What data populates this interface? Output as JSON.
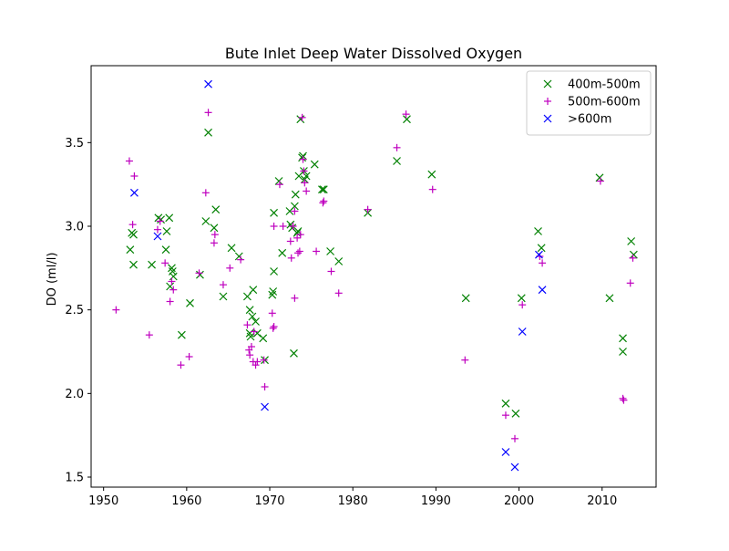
{
  "chart_data": {
    "type": "scatter",
    "title": "Bute Inlet Deep Water Dissolved Oxygen",
    "xlabel": "",
    "ylabel": "DO (ml/l)",
    "xlim": [
      1948.5,
      2016.5
    ],
    "ylim": [
      1.44,
      3.96
    ],
    "xticks": [
      1950,
      1960,
      1970,
      1980,
      1990,
      2000,
      2010
    ],
    "yticks": [
      1.5,
      2.0,
      2.5,
      3.0,
      3.5
    ],
    "ytick_labels": [
      "1.5",
      "2.0",
      "2.5",
      "3.0",
      "3.5"
    ],
    "grid": false,
    "legend_position": "top-right",
    "series": [
      {
        "name": "400m-500m",
        "marker": "x",
        "color": "#008000",
        "points": [
          [
            1953.2,
            2.86
          ],
          [
            1953.4,
            2.96
          ],
          [
            1953.6,
            2.95
          ],
          [
            1953.6,
            2.77
          ],
          [
            1955.8,
            2.77
          ],
          [
            1956.6,
            3.05
          ],
          [
            1956.9,
            3.04
          ],
          [
            1957.5,
            2.86
          ],
          [
            1957.6,
            2.97
          ],
          [
            1957.9,
            3.05
          ],
          [
            1958.0,
            2.64
          ],
          [
            1958.2,
            2.75
          ],
          [
            1958.3,
            2.73
          ],
          [
            1958.4,
            2.7
          ],
          [
            1959.4,
            2.35
          ],
          [
            1960.4,
            2.54
          ],
          [
            1961.6,
            2.71
          ],
          [
            1962.3,
            3.03
          ],
          [
            1962.6,
            3.56
          ],
          [
            1963.3,
            2.99
          ],
          [
            1963.5,
            3.1
          ],
          [
            1964.4,
            2.58
          ],
          [
            1965.4,
            2.87
          ],
          [
            1966.3,
            2.82
          ],
          [
            1967.3,
            2.58
          ],
          [
            1967.6,
            2.5
          ],
          [
            1967.6,
            2.36
          ],
          [
            1967.7,
            2.34
          ],
          [
            1967.9,
            2.46
          ],
          [
            1968.0,
            2.62
          ],
          [
            1968.3,
            2.43
          ],
          [
            1968.5,
            2.36
          ],
          [
            1969.2,
            2.33
          ],
          [
            1969.4,
            2.2
          ],
          [
            1970.3,
            2.59
          ],
          [
            1970.4,
            2.61
          ],
          [
            1970.5,
            2.73
          ],
          [
            1970.5,
            3.08
          ],
          [
            1971.1,
            3.27
          ],
          [
            1971.5,
            2.84
          ],
          [
            1972.4,
            3.09
          ],
          [
            1972.5,
            3.01
          ],
          [
            1972.7,
            2.99
          ],
          [
            1972.9,
            2.24
          ],
          [
            1973.0,
            3.12
          ],
          [
            1973.1,
            3.19
          ],
          [
            1973.3,
            2.96
          ],
          [
            1973.4,
            2.97
          ],
          [
            1973.5,
            3.3
          ],
          [
            1973.7,
            3.64
          ],
          [
            1973.9,
            3.41
          ],
          [
            1974.0,
            3.42
          ],
          [
            1974.1,
            3.33
          ],
          [
            1974.2,
            3.28
          ],
          [
            1974.4,
            3.3
          ],
          [
            1975.4,
            3.37
          ],
          [
            1976.3,
            3.22
          ],
          [
            1976.5,
            3.22
          ],
          [
            1977.3,
            2.85
          ],
          [
            1978.3,
            2.79
          ],
          [
            1981.8,
            3.08
          ],
          [
            1985.3,
            3.39
          ],
          [
            1986.5,
            3.64
          ],
          [
            1989.5,
            3.31
          ],
          [
            1993.6,
            2.57
          ],
          [
            1998.4,
            1.94
          ],
          [
            1999.6,
            1.88
          ],
          [
            2000.3,
            2.57
          ],
          [
            2002.3,
            2.97
          ],
          [
            2002.7,
            2.87
          ],
          [
            2009.7,
            3.29
          ],
          [
            2010.9,
            2.57
          ],
          [
            2012.5,
            2.33
          ],
          [
            2012.5,
            2.25
          ],
          [
            2013.5,
            2.91
          ],
          [
            2013.8,
            2.83
          ]
        ]
      },
      {
        "name": "500m-600m",
        "marker": "+",
        "color": "#bf00bf",
        "points": [
          [
            1951.5,
            2.5
          ],
          [
            1953.1,
            3.39
          ],
          [
            1953.5,
            3.01
          ],
          [
            1953.7,
            3.3
          ],
          [
            1955.5,
            2.35
          ],
          [
            1956.5,
            2.98
          ],
          [
            1956.8,
            3.03
          ],
          [
            1957.4,
            2.78
          ],
          [
            1958.0,
            2.55
          ],
          [
            1958.2,
            2.67
          ],
          [
            1958.4,
            2.62
          ],
          [
            1959.3,
            2.17
          ],
          [
            1960.3,
            2.22
          ],
          [
            1961.5,
            2.72
          ],
          [
            1962.3,
            3.2
          ],
          [
            1962.6,
            3.68
          ],
          [
            1963.3,
            2.9
          ],
          [
            1963.4,
            2.95
          ],
          [
            1964.4,
            2.65
          ],
          [
            1965.2,
            2.75
          ],
          [
            1966.5,
            2.8
          ],
          [
            1967.3,
            2.41
          ],
          [
            1967.5,
            2.26
          ],
          [
            1967.6,
            2.23
          ],
          [
            1967.8,
            2.28
          ],
          [
            1968.0,
            2.19
          ],
          [
            1968.1,
            2.37
          ],
          [
            1968.3,
            2.17
          ],
          [
            1968.5,
            2.19
          ],
          [
            1969.3,
            2.2
          ],
          [
            1969.4,
            2.04
          ],
          [
            1970.3,
            2.48
          ],
          [
            1970.4,
            2.39
          ],
          [
            1970.5,
            2.4
          ],
          [
            1970.5,
            3.0
          ],
          [
            1971.2,
            3.25
          ],
          [
            1971.6,
            3.0
          ],
          [
            1972.5,
            2.91
          ],
          [
            1972.6,
            2.81
          ],
          [
            1972.8,
            3.0
          ],
          [
            1973.0,
            2.57
          ],
          [
            1973.0,
            3.09
          ],
          [
            1973.3,
            2.93
          ],
          [
            1973.4,
            2.84
          ],
          [
            1973.6,
            2.85
          ],
          [
            1973.7,
            2.95
          ],
          [
            1973.9,
            3.65
          ],
          [
            1974.0,
            3.4
          ],
          [
            1974.1,
            3.33
          ],
          [
            1974.2,
            3.26
          ],
          [
            1974.4,
            3.21
          ],
          [
            1975.6,
            2.85
          ],
          [
            1976.4,
            3.14
          ],
          [
            1976.5,
            3.15
          ],
          [
            1977.4,
            2.73
          ],
          [
            1978.3,
            2.6
          ],
          [
            1981.8,
            3.1
          ],
          [
            1985.3,
            3.47
          ],
          [
            1986.4,
            3.67
          ],
          [
            1989.6,
            3.22
          ],
          [
            1993.5,
            2.2
          ],
          [
            1998.4,
            1.87
          ],
          [
            1999.5,
            1.73
          ],
          [
            2000.4,
            2.53
          ],
          [
            2002.5,
            2.82
          ],
          [
            2002.8,
            2.78
          ],
          [
            2009.8,
            3.27
          ],
          [
            2012.5,
            1.97
          ],
          [
            2012.6,
            1.96
          ],
          [
            2013.4,
            2.66
          ],
          [
            2013.7,
            2.81
          ]
        ]
      },
      {
        "name": ">600m",
        "marker": "x",
        "color": "#0000ff",
        "points": [
          [
            1953.7,
            3.2
          ],
          [
            1956.5,
            2.94
          ],
          [
            1962.6,
            3.85
          ],
          [
            1969.4,
            1.92
          ],
          [
            1998.4,
            1.65
          ],
          [
            1999.5,
            1.56
          ],
          [
            2000.4,
            2.37
          ],
          [
            2002.4,
            2.83
          ],
          [
            2002.8,
            2.62
          ]
        ]
      }
    ]
  }
}
